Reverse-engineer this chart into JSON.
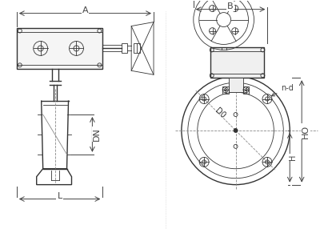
{
  "bg_color": "#ffffff",
  "line_color": "#333333",
  "dim_color": "#444444",
  "light_gray": "#aaaaaa",
  "mid_gray": "#888888",
  "title": "",
  "labels": {
    "A": "A",
    "B": "B",
    "DN": "DN",
    "L": "L",
    "H": "H",
    "HO": "HO",
    "nd": "n-d",
    "D0": "D0"
  },
  "figsize": [
    4.0,
    3.01
  ],
  "dpi": 100
}
